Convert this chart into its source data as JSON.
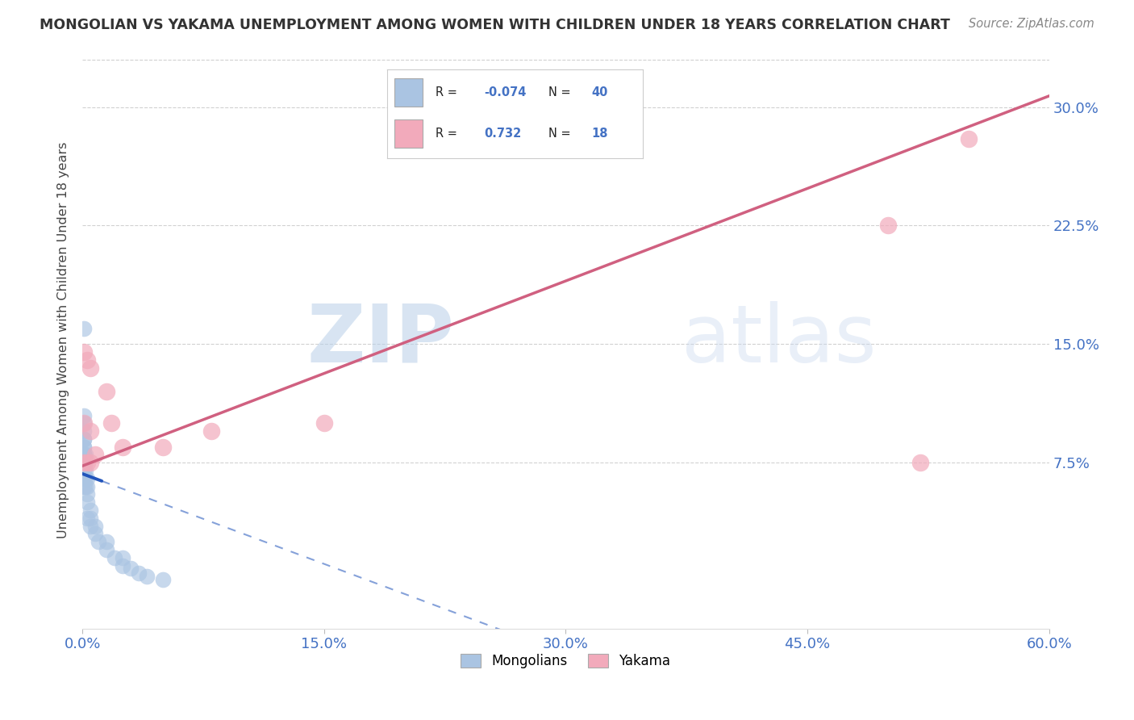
{
  "title": "MONGOLIAN VS YAKAMA UNEMPLOYMENT AMONG WOMEN WITH CHILDREN UNDER 18 YEARS CORRELATION CHART",
  "source": "Source: ZipAtlas.com",
  "ylabel": "Unemployment Among Women with Children Under 18 years",
  "xlabel_ticks": [
    "0.0%",
    "15.0%",
    "30.0%",
    "45.0%",
    "60.0%"
  ],
  "ylabel_ticks": [
    "7.5%",
    "15.0%",
    "22.5%",
    "30.0%"
  ],
  "xlim": [
    0.0,
    0.6
  ],
  "ylim": [
    -0.03,
    0.335
  ],
  "mongolian_x": [
    0.001,
    0.001,
    0.001,
    0.001,
    0.001,
    0.001,
    0.001,
    0.001,
    0.001,
    0.001,
    0.001,
    0.001,
    0.001,
    0.001,
    0.001,
    0.002,
    0.002,
    0.002,
    0.002,
    0.002,
    0.003,
    0.003,
    0.003,
    0.003,
    0.003,
    0.005,
    0.005,
    0.005,
    0.008,
    0.008,
    0.01,
    0.015,
    0.015,
    0.02,
    0.025,
    0.025,
    0.03,
    0.035,
    0.04,
    0.05
  ],
  "mongolian_y": [
    0.06,
    0.065,
    0.07,
    0.075,
    0.075,
    0.08,
    0.08,
    0.085,
    0.085,
    0.09,
    0.09,
    0.095,
    0.1,
    0.105,
    0.16,
    0.06,
    0.065,
    0.07,
    0.075,
    0.08,
    0.04,
    0.05,
    0.055,
    0.06,
    0.065,
    0.035,
    0.04,
    0.045,
    0.03,
    0.035,
    0.025,
    0.02,
    0.025,
    0.015,
    0.01,
    0.015,
    0.008,
    0.005,
    0.003,
    0.001
  ],
  "yakama_x": [
    0.001,
    0.001,
    0.001,
    0.003,
    0.003,
    0.005,
    0.005,
    0.005,
    0.008,
    0.015,
    0.018,
    0.025,
    0.05,
    0.08,
    0.15,
    0.5,
    0.52,
    0.55
  ],
  "yakama_y": [
    0.075,
    0.1,
    0.145,
    0.075,
    0.14,
    0.075,
    0.095,
    0.135,
    0.08,
    0.12,
    0.1,
    0.085,
    0.085,
    0.095,
    0.1,
    0.225,
    0.075,
    0.28
  ],
  "mongolian_color": "#aac4e2",
  "yakama_color": "#f2aabb",
  "mongolian_line_color": "#2255bb",
  "yakama_line_color": "#d06080",
  "mongolian_R": -0.074,
  "mongolian_N": 40,
  "yakama_R": 0.732,
  "yakama_N": 18,
  "legend_mongolians": "Mongolians",
  "legend_yakama": "Yakama",
  "watermark_zip": "ZIP",
  "watermark_atlas": "atlas",
  "background_color": "#ffffff",
  "grid_color": "#cccccc"
}
